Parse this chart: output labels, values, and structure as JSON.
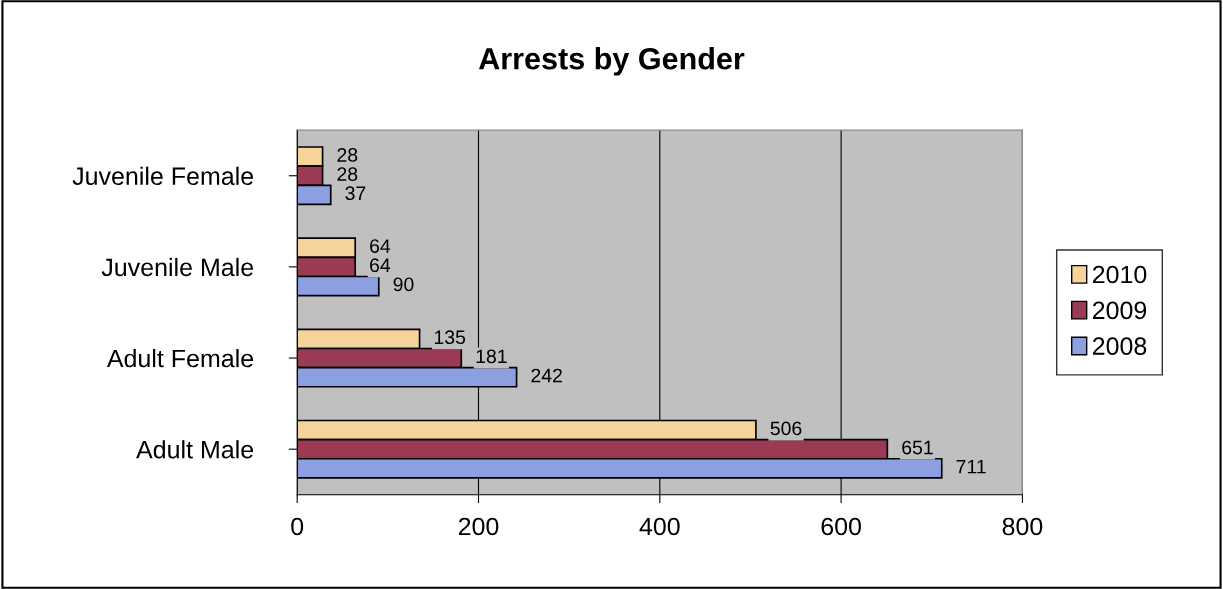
{
  "chart_data": {
    "type": "bar",
    "orientation": "horizontal",
    "title": "Arrests by Gender",
    "categories": [
      "Juvenile Female",
      "Juvenile Male",
      "Adult Female",
      "Adult Male"
    ],
    "series": [
      {
        "name": "2010",
        "color": "#f6d39b",
        "values": [
          28,
          64,
          135,
          506
        ]
      },
      {
        "name": "2009",
        "color": "#9b3a54",
        "values": [
          28,
          64,
          181,
          651
        ]
      },
      {
        "name": "2008",
        "color": "#8c9fe0",
        "values": [
          37,
          90,
          242,
          711
        ]
      }
    ],
    "xlim": [
      0,
      800
    ],
    "xticks": [
      0,
      200,
      400,
      600,
      800
    ],
    "grid": "x",
    "legend": "right",
    "data_labels": true
  }
}
